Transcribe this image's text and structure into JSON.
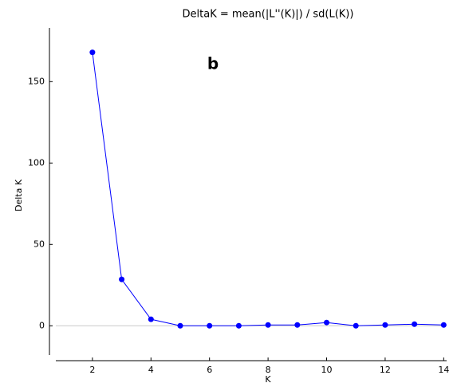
{
  "chart_data": {
    "type": "line",
    "title": "DeltaK = mean(|L''(K)|) / sd(L(K))",
    "annotation": "b",
    "x_label": "K",
    "y_label": "Delta K",
    "x": [
      2,
      3,
      4,
      5,
      6,
      7,
      8,
      9,
      10,
      11,
      12,
      13,
      14
    ],
    "series": [
      {
        "name": "Delta K",
        "color": "#0000ff",
        "values": [
          168,
          28.5,
          4,
          0,
          0,
          0,
          0.5,
          0.5,
          2,
          0,
          0.5,
          1,
          0.5
        ]
      }
    ],
    "xlim": [
      0.75,
      14.1
    ],
    "ylim": [
      -18,
      183
    ],
    "xticks": [
      2,
      4,
      6,
      8,
      10,
      12,
      14
    ],
    "yticks": [
      0,
      50,
      100,
      150
    ]
  }
}
